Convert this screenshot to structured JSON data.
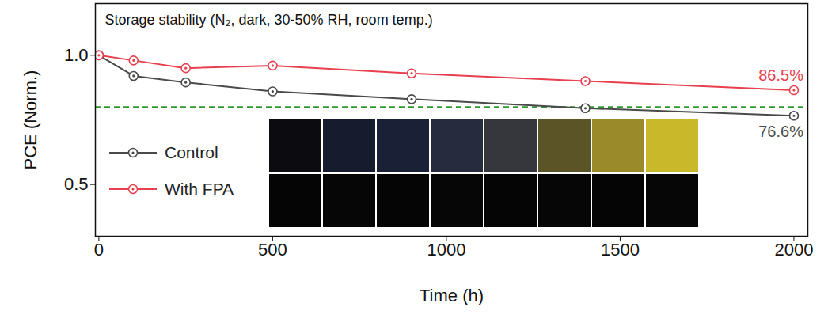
{
  "chart_data": {
    "type": "line",
    "title": "Storage stability (N₂, dark, 30-50% RH, room temp.)",
    "x_label": "Time (h)",
    "y_label": "PCE (Norm.)",
    "x": [
      0,
      100,
      250,
      500,
      900,
      1400,
      2000
    ],
    "series": [
      {
        "name": "Control",
        "color": "#4a4a4a",
        "marker": "circle",
        "values": [
          1.0,
          0.92,
          0.895,
          0.86,
          0.83,
          0.795,
          0.766
        ]
      },
      {
        "name": "With FPA",
        "color": "#e8404e",
        "marker": "circle",
        "values": [
          1.0,
          0.98,
          0.95,
          0.96,
          0.93,
          0.9,
          0.865
        ]
      }
    ],
    "annotations": [
      {
        "text": "86.5%",
        "series": "With FPA"
      },
      {
        "text": "76.6%",
        "series": "Control"
      }
    ],
    "reference_line": {
      "value": 0.8,
      "color": "#2e9a2e",
      "line_style": "dashed"
    },
    "xlim": [
      -10,
      2040
    ],
    "ylim": [
      0.3,
      1.2
    ],
    "xticks": [
      0,
      500,
      1000,
      1500,
      2000
    ],
    "yticks": [
      0.5,
      {
        "value": 1.0,
        "label": "1.0"
      }
    ],
    "grid": false,
    "legend": "left"
  }
}
